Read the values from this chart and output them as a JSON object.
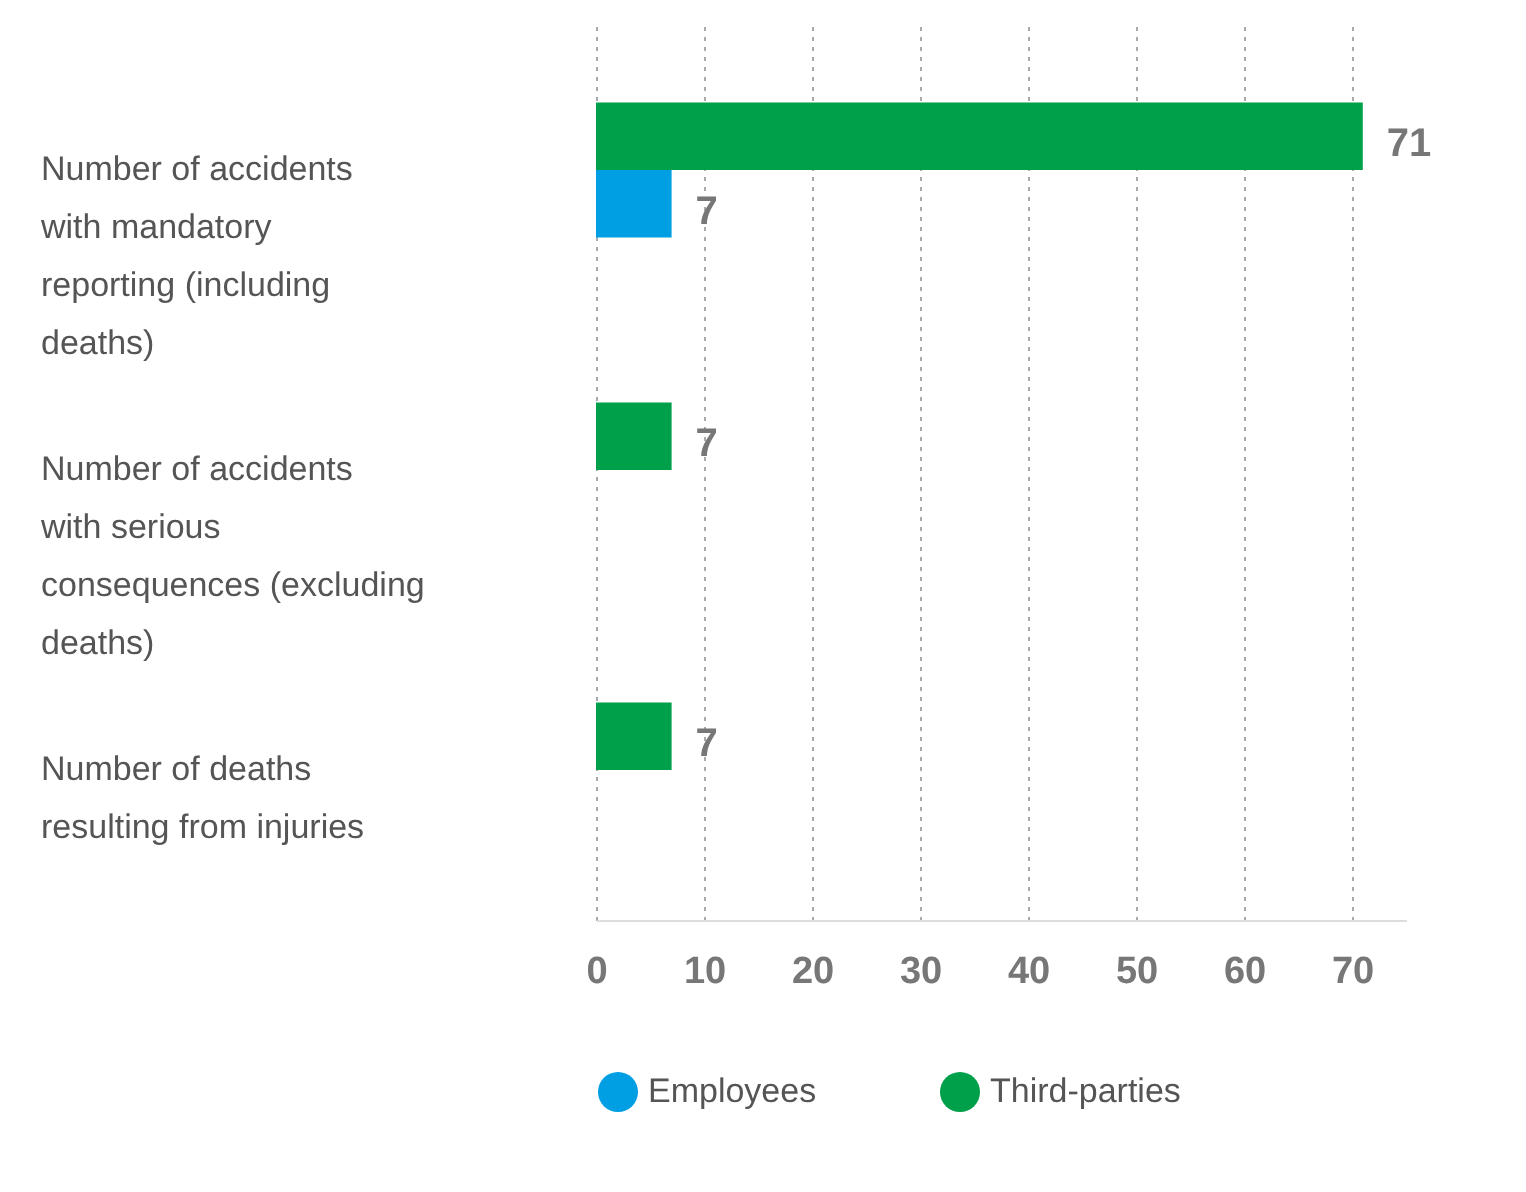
{
  "chart_data": {
    "type": "bar",
    "orientation": "horizontal",
    "categories": [
      "Number of accidents with mandatory reporting (including deaths)",
      "Number of accidents with serious consequences (excluding deaths)",
      "Number of deaths resulting from injuries"
    ],
    "series": [
      {
        "name": "Employees",
        "color": "#009fe3",
        "values": [
          7,
          null,
          null
        ]
      },
      {
        "name": "Third-parties",
        "color": "#00a04a",
        "values": [
          71,
          7,
          7
        ]
      }
    ],
    "xlim": [
      0,
      75
    ],
    "xticks": [
      0,
      10,
      20,
      30,
      40,
      50,
      60,
      70
    ],
    "grid": "x",
    "legend": "bottom",
    "data_labels": true
  }
}
